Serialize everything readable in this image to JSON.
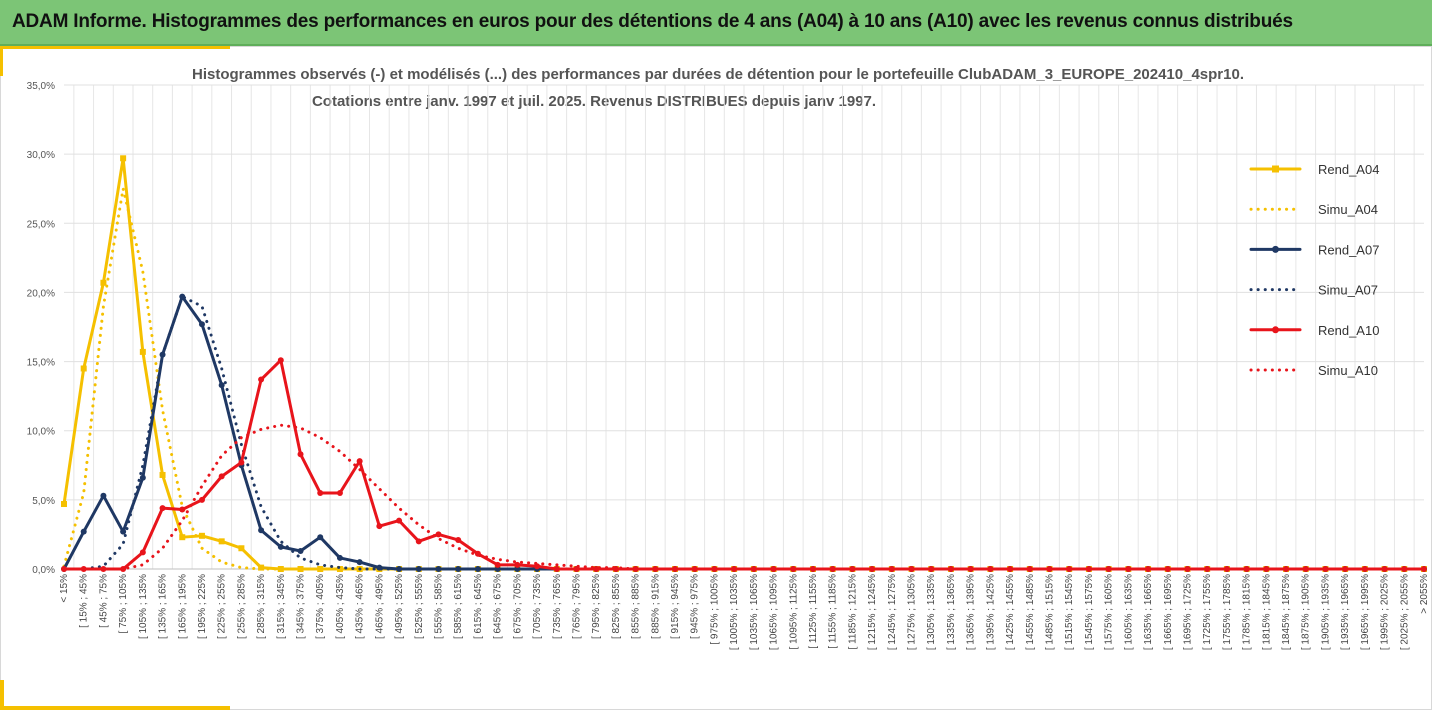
{
  "header": {
    "title": "ADAM Informe. Histogrammes des performances en euros pour des détentions de 4 ans (A04) à 10 ans (A10) avec les revenus connus distribués"
  },
  "colors": {
    "banner": "#7cc576",
    "accent": "#f5c000",
    "gold": "#f5c000",
    "navy": "#1f3864",
    "red": "#e8141b"
  },
  "chart_data": {
    "type": "line",
    "title": "Histogrammes observés (-) et modélisés (...) des performances par durées de détention pour le portefeuille ClubADAM_3_EUROPE_202410_4spr10.",
    "subtitle": "Cotations entre janv. 1997 et juil. 2025. Revenus DISTRIBUES depuis janv 1997.",
    "ylim": [
      0,
      0.35
    ],
    "yticks": [
      "0,0%",
      "5,0%",
      "10,0%",
      "15,0%",
      "20,0%",
      "25,0%",
      "30,0%",
      "35,0%"
    ],
    "grid": true,
    "legend_position": "right",
    "categories": [
      "< 15%",
      "[ 15% ; 45%",
      "[ 45% ; 75%",
      "[ 75% ; 105%",
      "[ 105% ; 135%",
      "[ 135% ; 165%",
      "[ 165% ; 195%",
      "[ 195% ; 225%",
      "[ 225% ; 255%",
      "[ 255% ; 285%",
      "[ 285% ; 315%",
      "[ 315% ; 345%",
      "[ 345% ; 375%",
      "[ 375% ; 405%",
      "[ 405% ; 435%",
      "[ 435% ; 465%",
      "[ 465% ; 495%",
      "[ 495% ; 525%",
      "[ 525% ; 555%",
      "[ 555% ; 585%",
      "[ 585% ; 615%",
      "[ 615% ; 645%",
      "[ 645% ; 675%",
      "[ 675% ; 705%",
      "[ 705% ; 735%",
      "[ 735% ; 765%",
      "[ 765% ; 795%",
      "[ 795% ; 825%",
      "[ 825% ; 855%",
      "[ 855% ; 885%",
      "[ 885% ; 915%",
      "[ 915% ; 945%",
      "[ 945% ; 975%",
      "[ 975% ; 1005%",
      "[ 1005% ; 1035%",
      "[ 1035% ; 1065%",
      "[ 1065% ; 1095%",
      "[ 1095% ; 1125%",
      "[ 1125% ; 1155%",
      "[ 1155% ; 1185%",
      "[ 1185% ; 1215%",
      "[ 1215% ; 1245%",
      "[ 1245% ; 1275%",
      "[ 1275% ; 1305%",
      "[ 1305% ; 1335%",
      "[ 1335% ; 1365%",
      "[ 1365% ; 1395%",
      "[ 1395% ; 1425%",
      "[ 1425% ; 1455%",
      "[ 1455% ; 1485%",
      "[ 1485% ; 1515%",
      "[ 1515% ; 1545%",
      "[ 1545% ; 1575%",
      "[ 1575% ; 1605%",
      "[ 1605% ; 1635%",
      "[ 1635% ; 1665%",
      "[ 1665% ; 1695%",
      "[ 1695% ; 1725%",
      "[ 1725% ; 1755%",
      "[ 1755% ; 1785%",
      "[ 1785% ; 1815%",
      "[ 1815% ; 1845%",
      "[ 1845% ; 1875%",
      "[ 1875% ; 1905%",
      "[ 1905% ; 1935%",
      "[ 1935% ; 1965%",
      "[ 1965% ; 1995%",
      "[ 1995% ; 2025%",
      "[ 2025% ; 2055%",
      "> 2055%"
    ],
    "series": [
      {
        "name": "Rend_A04",
        "style": "solid",
        "marker": "square",
        "color": "#f5c000",
        "values": [
          0.047,
          0.145,
          0.207,
          0.297,
          0.157,
          0.068,
          0.023,
          0.024,
          0.02,
          0.015,
          0.001,
          0,
          0,
          0,
          0,
          0,
          0,
          0,
          0,
          0,
          0,
          0,
          0,
          0,
          0,
          0,
          0,
          0,
          0,
          0,
          0,
          0,
          0,
          0,
          0,
          0,
          0,
          0,
          0,
          0,
          0,
          0,
          0,
          0,
          0,
          0,
          0,
          0,
          0,
          0,
          0,
          0,
          0,
          0,
          0,
          0,
          0,
          0,
          0,
          0,
          0,
          0,
          0,
          0,
          0,
          0,
          0,
          0,
          0,
          0
        ]
      },
      {
        "name": "Simu_A04",
        "style": "dotted",
        "color": "#f5c000",
        "values": [
          0.002,
          0.055,
          0.19,
          0.275,
          0.215,
          0.115,
          0.045,
          0.015,
          0.005,
          0.001,
          0,
          0,
          0,
          0,
          0,
          0,
          0,
          0,
          0,
          0,
          0,
          0,
          0,
          0,
          0,
          0,
          0,
          0,
          0,
          0,
          0,
          0,
          0,
          0,
          0,
          0,
          0,
          0,
          0,
          0,
          0,
          0,
          0,
          0,
          0,
          0,
          0,
          0,
          0,
          0,
          0,
          0,
          0,
          0,
          0,
          0,
          0,
          0,
          0,
          0,
          0,
          0,
          0,
          0,
          0,
          0,
          0,
          0,
          0,
          0
        ]
      },
      {
        "name": "Rend_A07",
        "style": "solid",
        "marker": "circle",
        "color": "#1f3864",
        "values": [
          0,
          0.027,
          0.053,
          0.027,
          0.066,
          0.155,
          0.197,
          0.177,
          0.133,
          0.075,
          0.028,
          0.016,
          0.013,
          0.023,
          0.008,
          0.005,
          0.001,
          0,
          0,
          0,
          0,
          0,
          0,
          0,
          0,
          0,
          0,
          0,
          0,
          0,
          0,
          0,
          0,
          0,
          0,
          0,
          0,
          0,
          0,
          0,
          0,
          0,
          0,
          0,
          0,
          0,
          0,
          0,
          0,
          0,
          0,
          0,
          0,
          0,
          0,
          0,
          0,
          0,
          0,
          0,
          0,
          0,
          0,
          0,
          0,
          0,
          0,
          0,
          0,
          0
        ]
      },
      {
        "name": "Simu_A07",
        "style": "dotted",
        "color": "#1f3864",
        "values": [
          0,
          0,
          0.002,
          0.018,
          0.075,
          0.155,
          0.197,
          0.19,
          0.145,
          0.09,
          0.045,
          0.02,
          0.008,
          0.003,
          0.001,
          0,
          0,
          0,
          0,
          0,
          0,
          0,
          0,
          0,
          0,
          0,
          0,
          0,
          0,
          0,
          0,
          0,
          0,
          0,
          0,
          0,
          0,
          0,
          0,
          0,
          0,
          0,
          0,
          0,
          0,
          0,
          0,
          0,
          0,
          0,
          0,
          0,
          0,
          0,
          0,
          0,
          0,
          0,
          0,
          0,
          0,
          0,
          0,
          0,
          0,
          0,
          0,
          0,
          0,
          0
        ]
      },
      {
        "name": "Rend_A10",
        "style": "solid",
        "marker": "circle",
        "color": "#e8141b",
        "values": [
          0,
          0,
          0,
          0,
          0.012,
          0.044,
          0.043,
          0.05,
          0.067,
          0.077,
          0.137,
          0.151,
          0.083,
          0.055,
          0.055,
          0.078,
          0.031,
          0.035,
          0.02,
          0.025,
          0.021,
          0.011,
          0.003,
          0.003,
          0.002,
          0,
          0,
          0,
          0,
          0,
          0,
          0,
          0,
          0,
          0,
          0,
          0,
          0,
          0,
          0,
          0,
          0,
          0,
          0,
          0,
          0,
          0,
          0,
          0,
          0,
          0,
          0,
          0,
          0,
          0,
          0,
          0,
          0,
          0,
          0,
          0,
          0,
          0,
          0,
          0,
          0,
          0,
          0,
          0,
          0
        ]
      },
      {
        "name": "Simu_A10",
        "style": "dotted",
        "color": "#e8141b",
        "values": [
          0,
          0,
          0,
          0,
          0.003,
          0.015,
          0.035,
          0.06,
          0.082,
          0.095,
          0.101,
          0.104,
          0.102,
          0.095,
          0.085,
          0.072,
          0.058,
          0.044,
          0.032,
          0.022,
          0.015,
          0.01,
          0.007,
          0.005,
          0.004,
          0.003,
          0.002,
          0.001,
          0.001,
          0,
          0,
          0,
          0,
          0,
          0,
          0,
          0,
          0,
          0,
          0,
          0,
          0,
          0,
          0,
          0,
          0,
          0,
          0,
          0,
          0,
          0,
          0,
          0,
          0,
          0,
          0,
          0,
          0,
          0,
          0,
          0,
          0,
          0,
          0,
          0,
          0,
          0,
          0,
          0,
          0
        ]
      }
    ]
  }
}
